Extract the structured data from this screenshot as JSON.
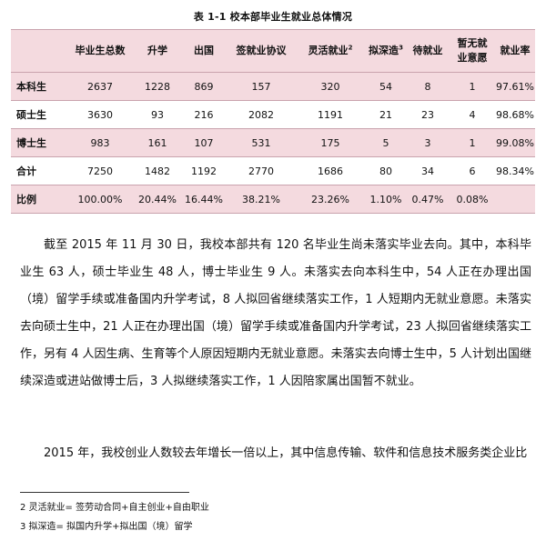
{
  "caption": "表 1-1 校本部毕业生就业总体情况",
  "table": {
    "headers": [
      "",
      "毕业生总数",
      "升学",
      "出国",
      "签就业协议",
      "灵活就业",
      "拟深造",
      "待就业",
      "暂无就\n业意愿",
      "就业率"
    ],
    "header_sups": {
      "5": "2",
      "6": "3"
    },
    "rows": [
      [
        "本科生",
        "2637",
        "1228",
        "869",
        "157",
        "320",
        "54",
        "8",
        "1",
        "97.61%"
      ],
      [
        "硕士生",
        "3630",
        "93",
        "216",
        "2082",
        "1191",
        "21",
        "23",
        "4",
        "98.68%"
      ],
      [
        "博士生",
        "983",
        "161",
        "107",
        "531",
        "175",
        "5",
        "3",
        "1",
        "99.08%"
      ],
      [
        "合计",
        "7250",
        "1482",
        "1192",
        "2770",
        "1686",
        "80",
        "34",
        "6",
        "98.34%"
      ],
      [
        "比例",
        "100.00%",
        "20.44%",
        "16.44%",
        "38.21%",
        "23.26%",
        "1.10%",
        "0.47%",
        "0.08%",
        ""
      ]
    ]
  },
  "paragraphs": [
    "截至 2015 年 11 月 30 日，我校本部共有 120 名毕业生尚未落实毕业去向。其中，本科毕业生 63 人，硕士毕业生 48 人，博士毕业生 9 人。未落实去向本科生中，54 人正在办理出国（境）留学手续或准备国内升学考试，8 人拟回省继续落实工作，1 人短期内无就业意愿。未落实去向硕士生中，21 人正在办理出国（境）留学手续或准备国内升学考试，23 人拟回省继续落实工作，另有 4 人因生病、生育等个人原因短期内无就业意愿。未落实去向博士生中，5 人计划出国继续深造或进站做博士后，3 人拟继续落实工作，1 人因陪家属出国暂不就业。",
    "2015 年，我校创业人数较去年增长一倍以上，其中信息传输、软件和信息技术服务类企业比"
  ],
  "footnotes": [
    "2  灵活就业=  签劳动合同+自主创业+自由职业",
    "3  拟深造=  拟国内升学+拟出国（境）留学"
  ]
}
